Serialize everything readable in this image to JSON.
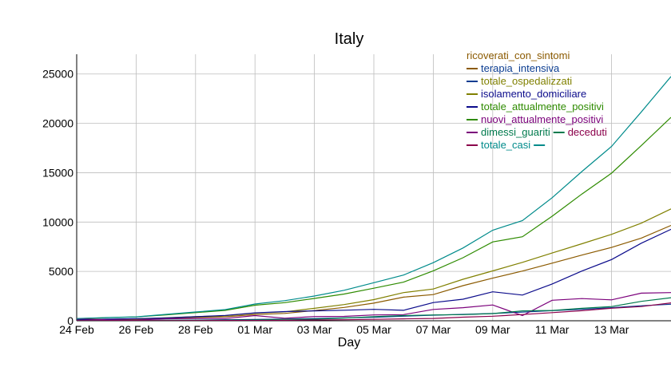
{
  "chart_data": {
    "type": "line",
    "title": "Italy",
    "xlabel": "Day",
    "ylabel": "",
    "x": [
      "2020-02-24",
      "2020-02-25",
      "2020-02-26",
      "2020-02-27",
      "2020-02-28",
      "2020-02-29",
      "2020-03-01",
      "2020-03-02",
      "2020-03-03",
      "2020-03-04",
      "2020-03-05",
      "2020-03-06",
      "2020-03-07",
      "2020-03-08",
      "2020-03-09",
      "2020-03-10",
      "2020-03-11",
      "2020-03-12",
      "2020-03-13",
      "2020-03-14",
      "2020-03-15"
    ],
    "xticks": [
      "24 Feb",
      "26 Feb",
      "28 Feb",
      "01 Mar",
      "03 Mar",
      "05 Mar",
      "07 Mar",
      "09 Mar",
      "11 Mar",
      "13 Mar"
    ],
    "xlim": [
      "2020-02-24",
      "2020-03-15"
    ],
    "yticks": [
      0,
      5000,
      10000,
      15000,
      20000,
      25000
    ],
    "ylim": [
      0,
      27000
    ],
    "grid": true,
    "legend_position": "top-right",
    "series": [
      {
        "name": "ricoverati_con_sintomi",
        "color": "#8b5a00",
        "values": [
          101,
          114,
          128,
          248,
          345,
          401,
          639,
          742,
          1034,
          1346,
          1790,
          2394,
          2651,
          3557,
          4316,
          5038,
          5838,
          6650,
          7426,
          8372,
          9663
        ]
      },
      {
        "name": "terapia_intensiva",
        "color": "#0b3d91",
        "values": [
          26,
          35,
          36,
          56,
          64,
          105,
          140,
          166,
          229,
          295,
          351,
          462,
          567,
          650,
          733,
          877,
          1028,
          1153,
          1328,
          1518,
          1672
        ]
      },
      {
        "name": "totale_ospedalizzati",
        "color": "#808000",
        "values": [
          127,
          150,
          164,
          304,
          409,
          506,
          779,
          908,
          1263,
          1641,
          2141,
          2856,
          3218,
          4207,
          5049,
          5915,
          6866,
          7803,
          8754,
          9890,
          11335
        ]
      },
      {
        "name": "isolamento_domiciliare",
        "color": "#0b0b8b",
        "values": [
          94,
          162,
          221,
          284,
          412,
          543,
          798,
          927,
          1000,
          1065,
          1155,
          1060,
          1843,
          2180,
          2936,
          2599,
          3724,
          5036,
          6201,
          7860,
          9268
        ]
      },
      {
        "name": "totale_attualmente_positivi",
        "color": "#2e8b00",
        "values": [
          221,
          311,
          385,
          588,
          821,
          1049,
          1577,
          1835,
          2263,
          2706,
          3296,
          3916,
          5061,
          6387,
          7985,
          8514,
          10590,
          12839,
          14955,
          17750,
          20603
        ]
      },
      {
        "name": "nuovi_attualmente_positivi",
        "color": "#7b007b",
        "values": [
          221,
          90,
          74,
          203,
          233,
          228,
          528,
          258,
          428,
          443,
          590,
          620,
          1145,
          1326,
          1598,
          529,
          2076,
          2249,
          2116,
          2795,
          2853
        ]
      },
      {
        "name": "dimessi_guariti",
        "color": "#007a4d",
        "values": [
          1,
          1,
          3,
          45,
          46,
          50,
          83,
          149,
          160,
          276,
          414,
          523,
          589,
          622,
          724,
          1004,
          1045,
          1258,
          1439,
          1966,
          2335
        ]
      },
      {
        "name": "deceduti",
        "color": "#8b004b",
        "values": [
          7,
          10,
          12,
          17,
          21,
          29,
          34,
          52,
          79,
          107,
          148,
          197,
          233,
          366,
          463,
          631,
          827,
          1016,
          1266,
          1441,
          1809
        ]
      },
      {
        "name": "totale_casi",
        "color": "#008b8b",
        "values": [
          229,
          322,
          400,
          650,
          888,
          1128,
          1694,
          2036,
          2502,
          3089,
          3858,
          4636,
          5883,
          7375,
          9172,
          10149,
          12462,
          15113,
          17660,
          21157,
          24747
        ]
      }
    ]
  }
}
